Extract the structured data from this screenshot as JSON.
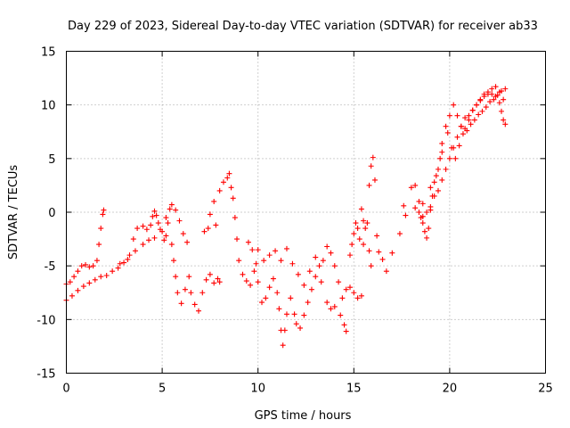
{
  "chart_data": {
    "type": "scatter",
    "title": "Day 229 of 2023, Sidereal Day-to-day VTEC variation (SDTVAR) for receiver ab33",
    "xlabel": "GPS time / hours",
    "ylabel": "SDTVAR / TECUs",
    "xlim": [
      0,
      25
    ],
    "ylim": [
      -15,
      15
    ],
    "x_ticks": [
      0,
      5,
      10,
      15,
      20,
      25
    ],
    "y_ticks": [
      -15,
      -10,
      -5,
      0,
      5,
      10,
      15
    ],
    "grid": true,
    "marker": "+",
    "color": "#ff0000",
    "series": [
      {
        "name": "SDTVAR",
        "points": [
          [
            0.0,
            -6.7
          ],
          [
            0.2,
            -6.5
          ],
          [
            0.4,
            -6.0
          ],
          [
            0.6,
            -5.5
          ],
          [
            0.8,
            -5.0
          ],
          [
            1.0,
            -4.9
          ],
          [
            1.2,
            -5.1
          ],
          [
            1.4,
            -5.0
          ],
          [
            1.6,
            -4.5
          ],
          [
            1.7,
            -3.0
          ],
          [
            1.8,
            -1.5
          ],
          [
            1.9,
            -0.2
          ],
          [
            1.95,
            0.2
          ],
          [
            0.0,
            -8.2
          ],
          [
            0.3,
            -7.8
          ],
          [
            0.6,
            -7.3
          ],
          [
            0.9,
            -6.9
          ],
          [
            1.2,
            -6.6
          ],
          [
            1.5,
            -6.3
          ],
          [
            1.8,
            -6.0
          ],
          [
            2.1,
            -5.9
          ],
          [
            2.4,
            -5.5
          ],
          [
            2.7,
            -5.2
          ],
          [
            3.0,
            -4.7
          ],
          [
            3.3,
            -4.0
          ],
          [
            3.5,
            -2.5
          ],
          [
            3.7,
            -1.5
          ],
          [
            4.0,
            -1.3
          ],
          [
            4.2,
            -1.6
          ],
          [
            4.4,
            -1.2
          ],
          [
            4.5,
            -0.4
          ],
          [
            4.6,
            0.1
          ],
          [
            4.7,
            -0.3
          ],
          [
            4.8,
            -1.0
          ],
          [
            5.0,
            -1.8
          ],
          [
            5.1,
            -2.6
          ],
          [
            5.2,
            -2.2
          ],
          [
            2.8,
            -4.8
          ],
          [
            3.2,
            -4.4
          ],
          [
            3.6,
            -3.6
          ],
          [
            4.0,
            -3.0
          ],
          [
            4.3,
            -2.6
          ],
          [
            4.6,
            -2.4
          ],
          [
            4.9,
            -1.6
          ],
          [
            5.2,
            -0.5
          ],
          [
            5.4,
            0.3
          ],
          [
            5.5,
            0.7
          ],
          [
            5.7,
            0.2
          ],
          [
            5.9,
            -0.8
          ],
          [
            6.1,
            -2.0
          ],
          [
            6.3,
            -2.8
          ],
          [
            5.3,
            -1.0
          ],
          [
            5.5,
            -3.0
          ],
          [
            5.6,
            -4.5
          ],
          [
            5.7,
            -6.0
          ],
          [
            5.8,
            -7.5
          ],
          [
            6.0,
            -8.5
          ],
          [
            6.2,
            -7.2
          ],
          [
            6.4,
            -6.0
          ],
          [
            6.5,
            -7.5
          ],
          [
            6.7,
            -8.6
          ],
          [
            6.9,
            -9.2
          ],
          [
            7.1,
            -7.5
          ],
          [
            7.3,
            -6.3
          ],
          [
            7.5,
            -5.8
          ],
          [
            7.7,
            -6.6
          ],
          [
            7.9,
            -6.2
          ],
          [
            8.0,
            -6.5
          ],
          [
            7.2,
            -1.8
          ],
          [
            7.4,
            -1.5
          ],
          [
            7.5,
            -0.2
          ],
          [
            7.7,
            1.0
          ],
          [
            7.8,
            -1.2
          ],
          [
            8.0,
            2.0
          ],
          [
            8.2,
            2.8
          ],
          [
            8.4,
            3.2
          ],
          [
            8.5,
            3.6
          ],
          [
            8.6,
            2.3
          ],
          [
            8.7,
            1.3
          ],
          [
            8.8,
            -0.5
          ],
          [
            8.9,
            -2.5
          ],
          [
            9.0,
            -4.5
          ],
          [
            9.2,
            -5.8
          ],
          [
            9.4,
            -6.4
          ],
          [
            9.6,
            -6.8
          ],
          [
            9.8,
            -5.5
          ],
          [
            9.5,
            -2.8
          ],
          [
            9.7,
            -3.5
          ],
          [
            9.9,
            -4.8
          ],
          [
            10.0,
            -6.5
          ],
          [
            10.2,
            -8.4
          ],
          [
            10.4,
            -8.0
          ],
          [
            10.6,
            -7.0
          ],
          [
            10.8,
            -6.2
          ],
          [
            11.0,
            -7.5
          ],
          [
            11.1,
            -9.0
          ],
          [
            11.2,
            -11.0
          ],
          [
            11.3,
            -12.4
          ],
          [
            11.4,
            -11.0
          ],
          [
            11.5,
            -9.5
          ],
          [
            11.7,
            -8.0
          ],
          [
            11.9,
            -9.5
          ],
          [
            12.0,
            -10.4
          ],
          [
            12.2,
            -10.8
          ],
          [
            12.4,
            -9.6
          ],
          [
            12.6,
            -8.4
          ],
          [
            12.8,
            -7.2
          ],
          [
            13.0,
            -6.0
          ],
          [
            13.2,
            -5.0
          ],
          [
            13.4,
            -4.5
          ],
          [
            13.6,
            -3.2
          ],
          [
            13.8,
            -3.8
          ],
          [
            14.0,
            -5.0
          ],
          [
            14.2,
            -6.5
          ],
          [
            14.4,
            -8.0
          ],
          [
            14.6,
            -7.2
          ],
          [
            14.8,
            -7.0
          ],
          [
            15.0,
            -7.5
          ],
          [
            15.2,
            -8.0
          ],
          [
            15.4,
            -7.8
          ],
          [
            10.0,
            -3.5
          ],
          [
            10.3,
            -4.5
          ],
          [
            10.6,
            -4.0
          ],
          [
            10.9,
            -3.6
          ],
          [
            11.2,
            -4.5
          ],
          [
            11.5,
            -3.4
          ],
          [
            11.8,
            -4.8
          ],
          [
            12.1,
            -5.8
          ],
          [
            12.4,
            -6.8
          ],
          [
            12.7,
            -5.5
          ],
          [
            13.0,
            -4.2
          ],
          [
            13.3,
            -6.5
          ],
          [
            13.6,
            -8.4
          ],
          [
            13.8,
            -9.0
          ],
          [
            14.0,
            -8.8
          ],
          [
            14.3,
            -9.6
          ],
          [
            14.5,
            -10.5
          ],
          [
            14.6,
            -11.1
          ],
          [
            14.8,
            -4.0
          ],
          [
            15.0,
            -2.0
          ],
          [
            15.2,
            -1.5
          ],
          [
            15.4,
            0.3
          ],
          [
            15.5,
            -0.8
          ],
          [
            15.6,
            -1.5
          ],
          [
            15.8,
            -3.6
          ],
          [
            15.9,
            -5.0
          ],
          [
            14.9,
            -3.0
          ],
          [
            15.1,
            -1.0
          ],
          [
            15.3,
            -2.5
          ],
          [
            15.5,
            -3.0
          ],
          [
            15.7,
            -1.0
          ],
          [
            15.8,
            2.5
          ],
          [
            15.9,
            4.3
          ],
          [
            16.0,
            5.1
          ],
          [
            16.1,
            3.0
          ],
          [
            16.2,
            -2.2
          ],
          [
            16.3,
            -3.7
          ],
          [
            16.5,
            -4.4
          ],
          [
            16.7,
            -5.5
          ],
          [
            17.0,
            -3.8
          ],
          [
            17.4,
            -2.0
          ],
          [
            17.6,
            0.6
          ],
          [
            17.7,
            -0.3
          ],
          [
            18.0,
            2.3
          ],
          [
            18.2,
            2.5
          ],
          [
            18.4,
            1.0
          ],
          [
            18.5,
            -0.5
          ],
          [
            18.6,
            -1.0
          ],
          [
            18.7,
            -1.8
          ],
          [
            18.8,
            -2.4
          ],
          [
            18.9,
            -1.5
          ],
          [
            19.0,
            0.2
          ],
          [
            19.1,
            1.5
          ],
          [
            19.2,
            2.8
          ],
          [
            19.4,
            4.0
          ],
          [
            19.5,
            5.0
          ],
          [
            19.6,
            6.4
          ],
          [
            19.8,
            8.0
          ],
          [
            20.0,
            9.0
          ],
          [
            20.2,
            10.0
          ],
          [
            20.4,
            9.0
          ],
          [
            20.6,
            8.0
          ],
          [
            20.8,
            7.8
          ],
          [
            21.0,
            8.6
          ],
          [
            21.2,
            9.5
          ],
          [
            21.4,
            10.0
          ],
          [
            21.6,
            10.5
          ],
          [
            21.8,
            11.0
          ],
          [
            22.0,
            11.2
          ],
          [
            22.2,
            11.5
          ],
          [
            22.4,
            11.7
          ],
          [
            22.6,
            11.2
          ],
          [
            22.8,
            10.5
          ],
          [
            18.2,
            0.4
          ],
          [
            18.4,
            0.0
          ],
          [
            18.6,
            -0.4
          ],
          [
            18.8,
            0.0
          ],
          [
            19.0,
            0.5
          ],
          [
            19.2,
            1.5
          ],
          [
            19.4,
            2.0
          ],
          [
            19.6,
            3.0
          ],
          [
            19.8,
            4.0
          ],
          [
            20.0,
            5.0
          ],
          [
            20.2,
            6.0
          ],
          [
            20.4,
            7.0
          ],
          [
            20.6,
            8.0
          ],
          [
            20.8,
            8.8
          ],
          [
            21.0,
            9.0
          ],
          [
            21.2,
            9.5
          ],
          [
            21.4,
            10.0
          ],
          [
            21.6,
            10.4
          ],
          [
            21.8,
            10.8
          ],
          [
            22.0,
            11.0
          ],
          [
            22.2,
            11.0
          ],
          [
            22.4,
            10.8
          ],
          [
            22.6,
            10.2
          ],
          [
            22.7,
            9.4
          ],
          [
            22.8,
            8.6
          ],
          [
            22.9,
            8.2
          ],
          [
            18.6,
            0.8
          ],
          [
            19.0,
            2.3
          ],
          [
            19.3,
            3.4
          ],
          [
            19.6,
            5.6
          ],
          [
            19.9,
            7.4
          ],
          [
            20.1,
            6.0
          ],
          [
            20.3,
            5.0
          ],
          [
            20.5,
            6.2
          ],
          [
            20.7,
            7.3
          ],
          [
            20.9,
            7.6
          ],
          [
            21.1,
            8.2
          ],
          [
            21.3,
            8.6
          ],
          [
            21.5,
            9.1
          ],
          [
            21.7,
            9.4
          ],
          [
            21.9,
            9.8
          ],
          [
            22.1,
            10.3
          ],
          [
            22.3,
            10.5
          ],
          [
            22.5,
            10.9
          ],
          [
            22.7,
            11.3
          ],
          [
            22.9,
            11.5
          ]
        ]
      }
    ]
  }
}
